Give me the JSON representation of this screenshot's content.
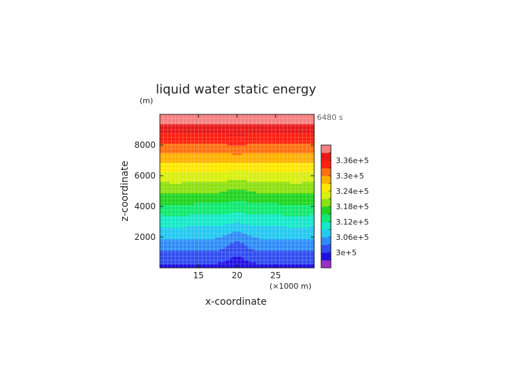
{
  "chart_data": {
    "type": "heatmap",
    "title": "liquid water static energy",
    "ylabel": "z-coordinate",
    "xlabel": "x-coordinate",
    "y_unit": "(m)",
    "x_unit": "(×1000 m)",
    "time_label": "6480 s",
    "xlim": [
      10,
      30
    ],
    "ylim": [
      0,
      10000
    ],
    "x_ticks": [
      15,
      20,
      25
    ],
    "x_tick_labels": [
      "15",
      "20",
      "25"
    ],
    "y_ticks": [
      2000,
      4000,
      6000,
      8000
    ],
    "y_tick_labels": [
      "2000",
      "4000",
      "6000",
      "8000"
    ],
    "grid": true,
    "colorbar": {
      "levels": [
        297000.0,
        300000.0,
        303000.0,
        306000.0,
        309000.0,
        312000.0,
        315000.0,
        318000.0,
        321000.0,
        324000.0,
        327000.0,
        330000.0,
        333000.0,
        336000.0,
        339000.0
      ],
      "colors": [
        "#9b30c8",
        "#2010e0",
        "#2f4df0",
        "#2f8cf8",
        "#24c8f0",
        "#16e8c8",
        "#10e870",
        "#20d420",
        "#8ce010",
        "#d8f010",
        "#ffe800",
        "#ffb000",
        "#ff7010",
        "#ff2010",
        "#e81818",
        "#f58080"
      ],
      "tick_values": [
        300000.0,
        306000.0,
        312000.0,
        318000.0,
        324000.0,
        330000.0,
        336000.0
      ],
      "tick_labels": [
        "3e+5",
        "3.06e+5",
        "3.12e+5",
        "3.18e+5",
        "3.24e+5",
        "3.3e+5",
        "3.36e+5"
      ]
    }
  }
}
